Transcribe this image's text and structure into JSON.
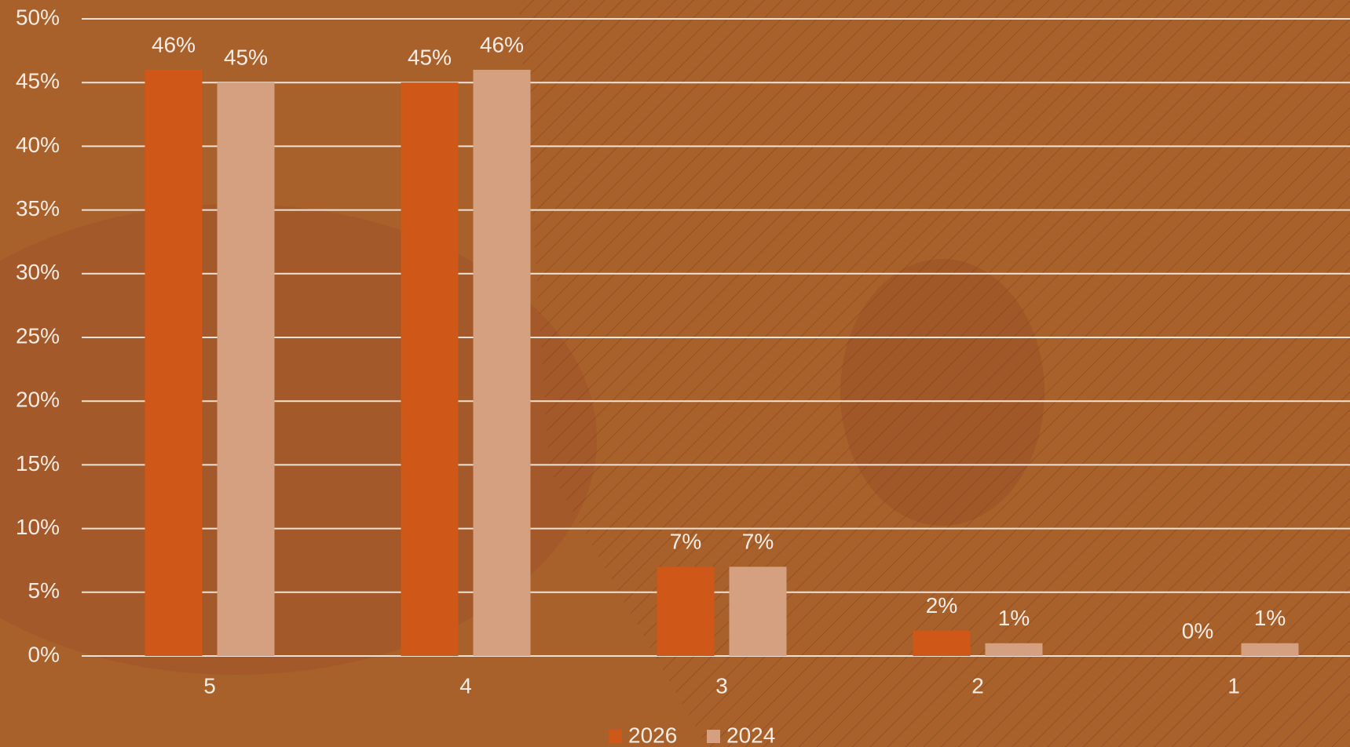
{
  "chart_data": {
    "type": "bar",
    "categories": [
      "5",
      "4",
      "3",
      "2",
      "1"
    ],
    "series": [
      {
        "name": "2026",
        "color": "#cf5717",
        "values": [
          46,
          45,
          7,
          2,
          0
        ],
        "value_labels": [
          "46%",
          "45%",
          "7%",
          "2%",
          "0%"
        ]
      },
      {
        "name": "2024",
        "color": "#d4a07f",
        "values": [
          45,
          46,
          7,
          1,
          1
        ],
        "value_labels": [
          "45%",
          "46%",
          "7%",
          "1%",
          "1%"
        ]
      }
    ],
    "ylim": [
      0,
      50
    ],
    "yticks": [
      {
        "value": 0,
        "label": "0%"
      },
      {
        "value": 5,
        "label": "5%"
      },
      {
        "value": 10,
        "label": "10%"
      },
      {
        "value": 15,
        "label": "15%"
      },
      {
        "value": 20,
        "label": "20%"
      },
      {
        "value": 25,
        "label": "25%"
      },
      {
        "value": 30,
        "label": "30%"
      },
      {
        "value": 35,
        "label": "35%"
      },
      {
        "value": 40,
        "label": "40%"
      },
      {
        "value": 45,
        "label": "45%"
      },
      {
        "value": 50,
        "label": "50%"
      }
    ],
    "grid": true,
    "legend": "bottom"
  }
}
